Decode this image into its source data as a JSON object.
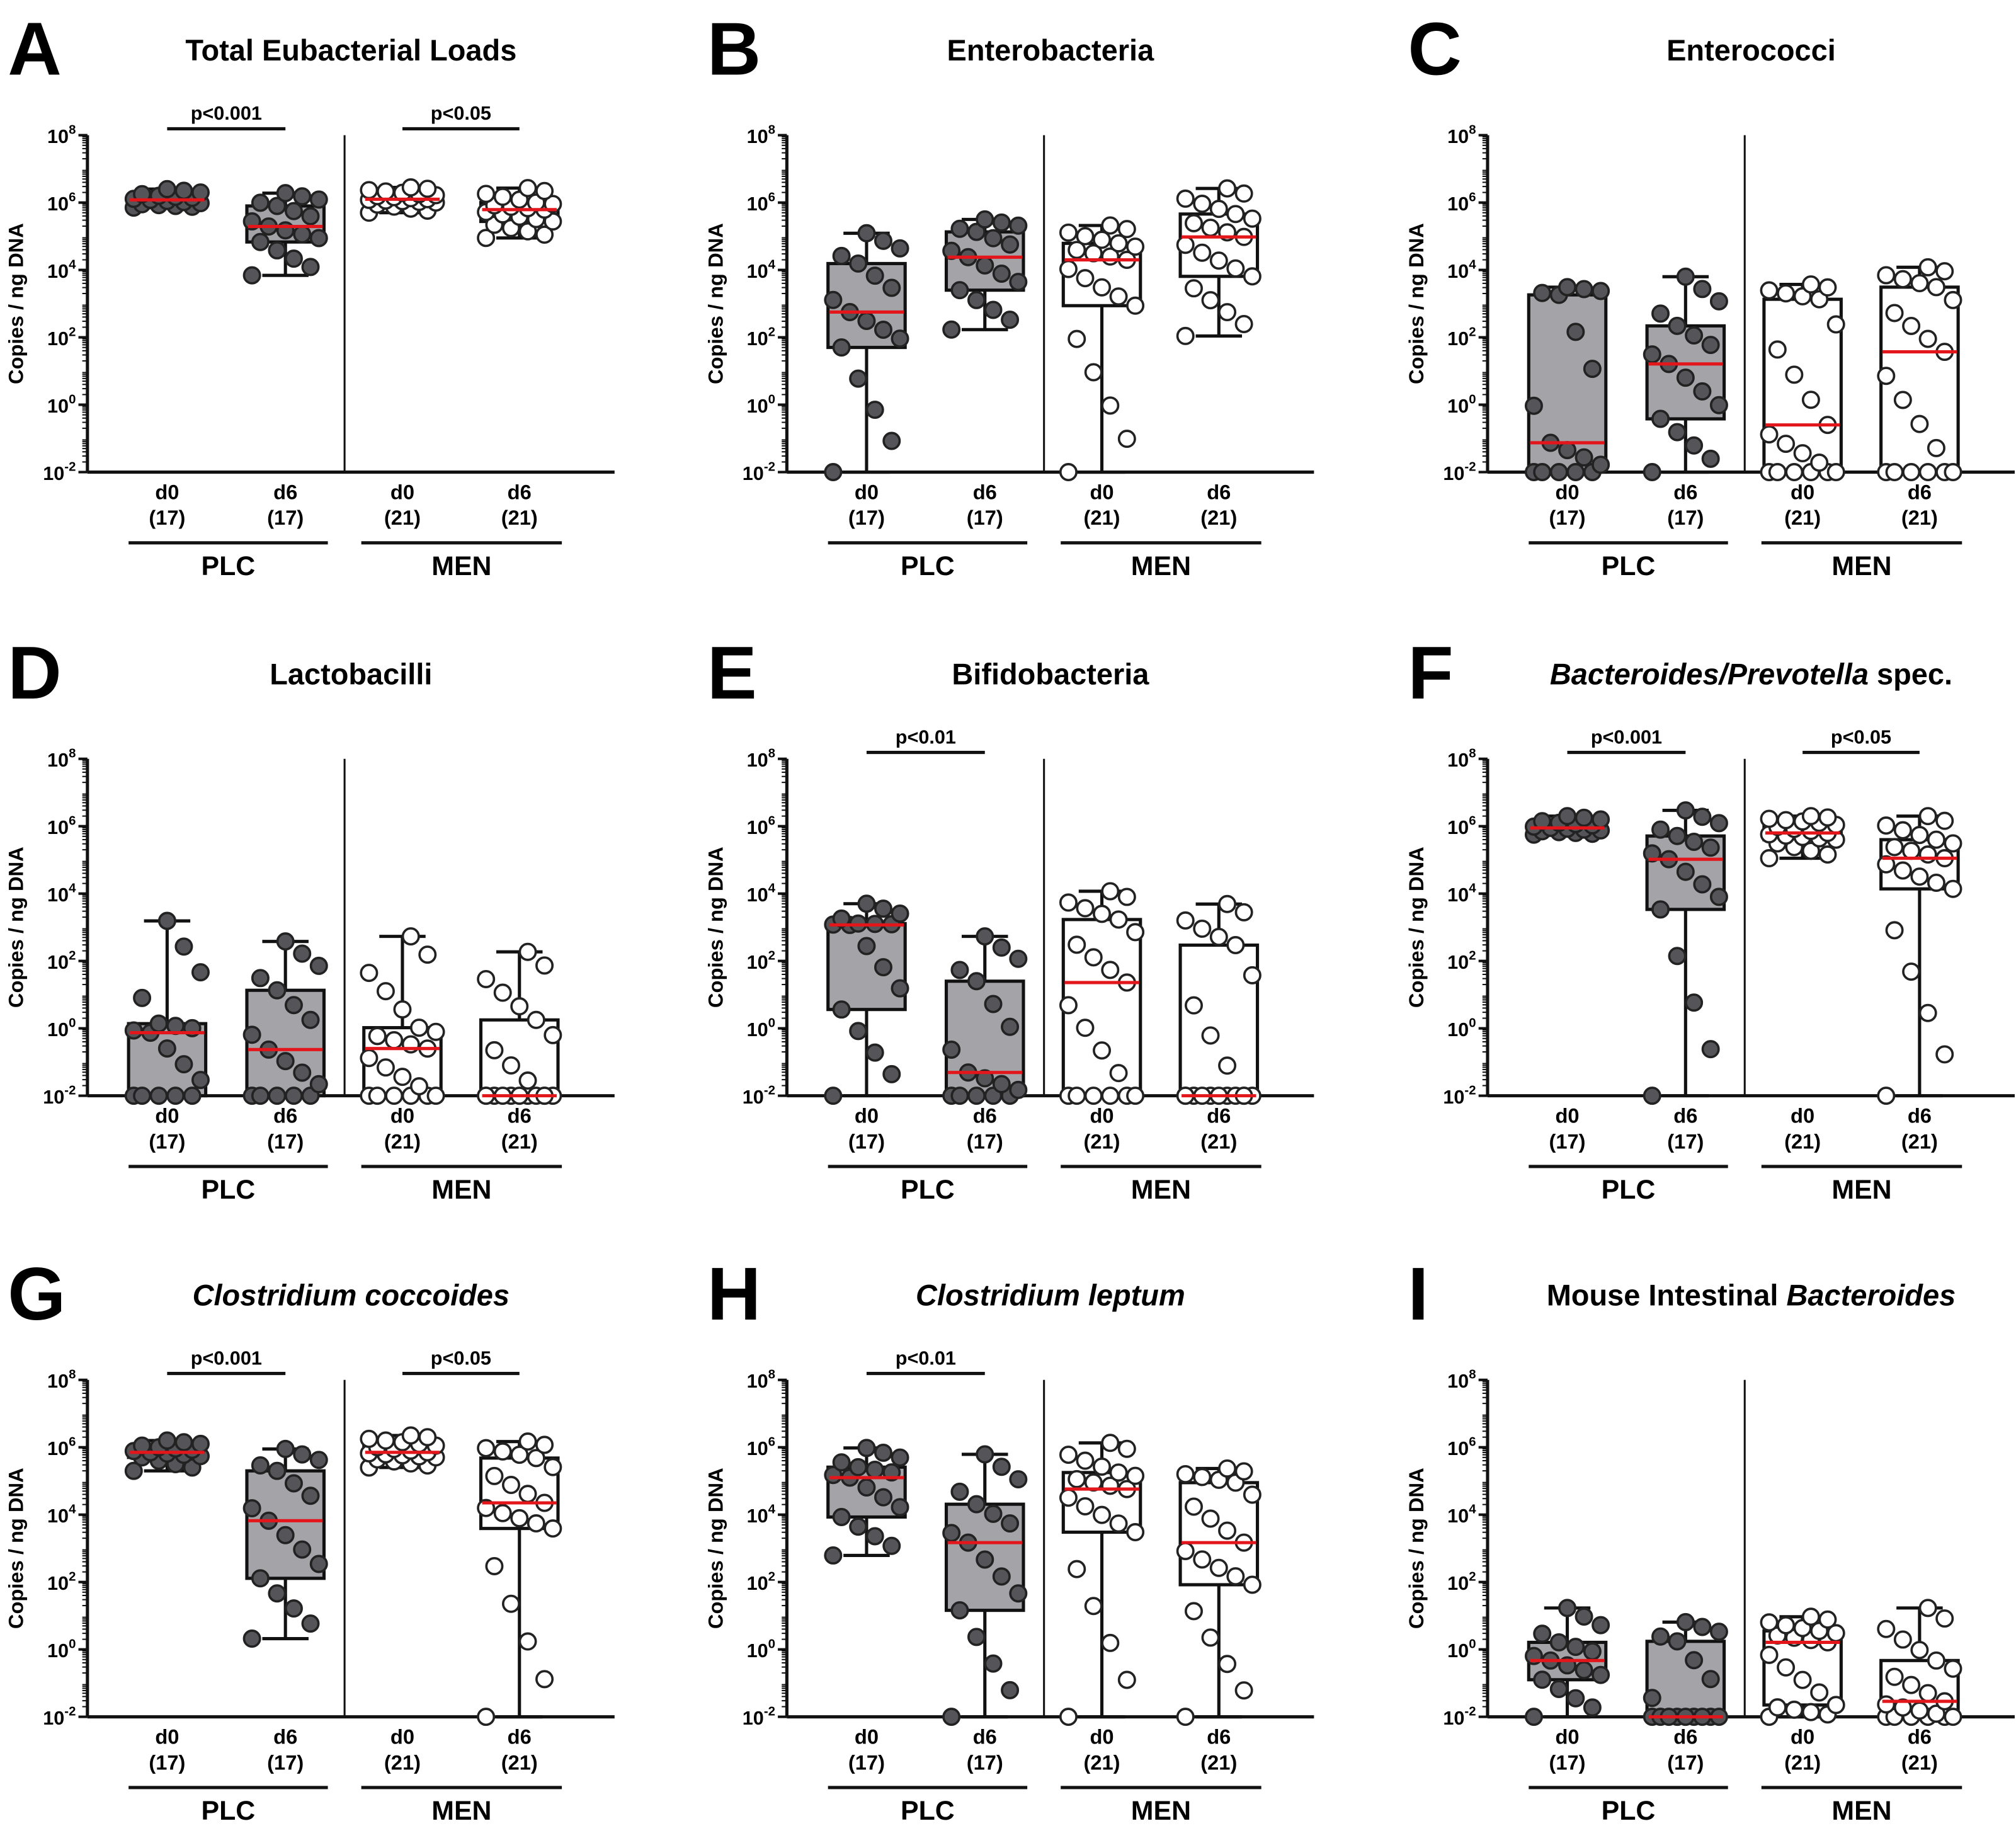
{
  "chart_data": [
    {
      "letter": "A",
      "type": "box",
      "title_parts": [
        {
          "text": "Total Eubacterial Loads",
          "italic": false
        }
      ],
      "ylabel": "Copies / ng DNA",
      "yscale": "log10",
      "ylim": [
        -2,
        8
      ],
      "yticks": [
        {
          "base": "10",
          "exp": "8"
        },
        {
          "base": "10",
          "exp": "6"
        },
        {
          "base": "10",
          "exp": "4"
        },
        {
          "base": "10",
          "exp": "2"
        },
        {
          "base": "10",
          "exp": "0"
        },
        {
          "base": "10",
          "exp": "-2"
        }
      ],
      "ytick_values": [
        8,
        6,
        4,
        2,
        0,
        -2
      ],
      "groups": [
        {
          "name": "PLC",
          "boxes": [
            {
              "label": "d0",
              "n_label": "(17)",
              "n": 17,
              "stats_log10": [
                5.85,
                5.95,
                6.08,
                6.2,
                6.4
              ]
            },
            {
              "label": "d6",
              "n_label": "(17)",
              "n": 17,
              "stats_log10": [
                3.84,
                4.83,
                5.29,
                5.9,
                6.28
              ]
            }
          ]
        },
        {
          "name": "MEN",
          "boxes": [
            {
              "label": "d0",
              "n_label": "(21)",
              "n": 21,
              "stats_log10": [
                5.7,
                6.0,
                6.1,
                6.25,
                6.45
              ]
            },
            {
              "label": "d6",
              "n_label": "(21)",
              "n": 21,
              "stats_log10": [
                4.95,
                5.44,
                5.79,
                6.0,
                6.43
              ]
            }
          ]
        }
      ],
      "significance": [
        {
          "group": "PLC",
          "label": "p<0.001"
        },
        {
          "group": "MEN",
          "label": "p<0.05"
        }
      ]
    },
    {
      "letter": "B",
      "type": "box",
      "title_parts": [
        {
          "text": "Enterobacteria",
          "italic": false
        }
      ],
      "ylabel": "Copies / ng DNA",
      "yscale": "log10",
      "ylim": [
        -2,
        8
      ],
      "yticks": [
        {
          "base": "10",
          "exp": "8"
        },
        {
          "base": "10",
          "exp": "6"
        },
        {
          "base": "10",
          "exp": "4"
        },
        {
          "base": "10",
          "exp": "2"
        },
        {
          "base": "10",
          "exp": "0"
        },
        {
          "base": "10",
          "exp": "-2"
        }
      ],
      "ytick_values": [
        8,
        6,
        4,
        2,
        0,
        -2
      ],
      "groups": [
        {
          "name": "PLC",
          "boxes": [
            {
              "label": "d0",
              "n_label": "(17)",
              "n": 17,
              "stats_log10": [
                -2,
                1.7,
                2.75,
                4.19,
                5.09
              ]
            },
            {
              "label": "d6",
              "n_label": "(17)",
              "n": 17,
              "stats_log10": [
                2.23,
                3.4,
                4.38,
                5.13,
                5.5
              ]
            }
          ]
        },
        {
          "name": "MEN",
          "boxes": [
            {
              "label": "d0",
              "n_label": "(21)",
              "n": 21,
              "stats_log10": [
                -2,
                2.94,
                4.3,
                4.79,
                5.32
              ]
            },
            {
              "label": "d6",
              "n_label": "(21)",
              "n": 21,
              "stats_log10": [
                2.04,
                3.81,
                4.98,
                5.66,
                6.42
              ]
            }
          ]
        }
      ],
      "significance": []
    },
    {
      "letter": "C",
      "type": "box",
      "title_parts": [
        {
          "text": "Enterococci",
          "italic": false
        }
      ],
      "ylabel": "Copies / ng DNA",
      "yscale": "log10",
      "ylim": [
        -2,
        8
      ],
      "yticks": [
        {
          "base": "10",
          "exp": "8"
        },
        {
          "base": "10",
          "exp": "6"
        },
        {
          "base": "10",
          "exp": "4"
        },
        {
          "base": "10",
          "exp": "2"
        },
        {
          "base": "10",
          "exp": "0"
        },
        {
          "base": "10",
          "exp": "-2"
        }
      ],
      "ytick_values": [
        8,
        6,
        4,
        2,
        0,
        -2
      ],
      "groups": [
        {
          "name": "PLC",
          "boxes": [
            {
              "label": "d0",
              "n_label": "(17)",
              "n": 17,
              "stats_log10": [
                -2,
                -2,
                -1.13,
                3.26,
                3.49
              ]
            },
            {
              "label": "d6",
              "n_label": "(17)",
              "n": 17,
              "stats_log10": [
                -2,
                -0.42,
                1.21,
                2.34,
                3.8
              ]
            }
          ]
        },
        {
          "name": "MEN",
          "boxes": [
            {
              "label": "d0",
              "n_label": "(21)",
              "n": 21,
              "stats_log10": [
                -2,
                -2,
                -0.6,
                3.13,
                3.57
              ]
            },
            {
              "label": "d6",
              "n_label": "(21)",
              "n": 21,
              "stats_log10": [
                -2,
                -2,
                1.57,
                3.49,
                4.08
              ]
            }
          ]
        }
      ],
      "significance": []
    },
    {
      "letter": "D",
      "type": "box",
      "title_parts": [
        {
          "text": "Lactobacilli",
          "italic": false
        }
      ],
      "ylabel": "Copies / ng DNA",
      "yscale": "log10",
      "ylim": [
        -2,
        8
      ],
      "yticks": [
        {
          "base": "10",
          "exp": "8"
        },
        {
          "base": "10",
          "exp": "6"
        },
        {
          "base": "10",
          "exp": "4"
        },
        {
          "base": "10",
          "exp": "2"
        },
        {
          "base": "10",
          "exp": "0"
        },
        {
          "base": "10",
          "exp": "-2"
        }
      ],
      "ytick_values": [
        8,
        6,
        4,
        2,
        0,
        -2
      ],
      "groups": [
        {
          "name": "PLC",
          "boxes": [
            {
              "label": "d0",
              "n_label": "(17)",
              "n": 17,
              "stats_log10": [
                -2,
                -2,
                -0.13,
                0.14,
                3.19
              ]
            },
            {
              "label": "d6",
              "n_label": "(17)",
              "n": 17,
              "stats_log10": [
                -2,
                -2,
                -0.63,
                1.13,
                2.58
              ]
            }
          ]
        },
        {
          "name": "MEN",
          "boxes": [
            {
              "label": "d0",
              "n_label": "(21)",
              "n": 21,
              "stats_log10": [
                -2,
                -2,
                -0.6,
                0.02,
                2.73
              ]
            },
            {
              "label": "d6",
              "n_label": "(21)",
              "n": 21,
              "stats_log10": [
                -2,
                -2,
                -2,
                0.25,
                2.27
              ]
            }
          ]
        }
      ],
      "significance": []
    },
    {
      "letter": "E",
      "type": "box",
      "title_parts": [
        {
          "text": "Bifidobacteria",
          "italic": false
        }
      ],
      "ylabel": "Copies / ng DNA",
      "yscale": "log10",
      "ylim": [
        -2,
        8
      ],
      "yticks": [
        {
          "base": "10",
          "exp": "8"
        },
        {
          "base": "10",
          "exp": "6"
        },
        {
          "base": "10",
          "exp": "4"
        },
        {
          "base": "10",
          "exp": "2"
        },
        {
          "base": "10",
          "exp": "0"
        },
        {
          "base": "10",
          "exp": "-2"
        }
      ],
      "ytick_values": [
        8,
        6,
        4,
        2,
        0,
        -2
      ],
      "groups": [
        {
          "name": "PLC",
          "boxes": [
            {
              "label": "d0",
              "n_label": "(17)",
              "n": 17,
              "stats_log10": [
                -2,
                0.56,
                3.07,
                3.11,
                3.7
              ]
            },
            {
              "label": "d6",
              "n_label": "(17)",
              "n": 17,
              "stats_log10": [
                -2,
                -2,
                -1.31,
                1.4,
                2.73
              ]
            }
          ]
        },
        {
          "name": "MEN",
          "boxes": [
            {
              "label": "d0",
              "n_label": "(21)",
              "n": 21,
              "stats_log10": [
                -2,
                -2,
                1.36,
                3.23,
                4.07
              ]
            },
            {
              "label": "d6",
              "n_label": "(21)",
              "n": 21,
              "stats_log10": [
                -2,
                -2,
                -2,
                2.47,
                3.69
              ]
            }
          ]
        }
      ],
      "significance": [
        {
          "group": "PLC",
          "label": "p<0.01"
        }
      ]
    },
    {
      "letter": "F",
      "type": "box",
      "title_parts": [
        {
          "text": "Bacteroides/Prevotella",
          "italic": true
        },
        {
          "text": " spec.",
          "italic": false
        }
      ],
      "ylabel": "Copies / ng DNA",
      "yscale": "log10",
      "ylim": [
        -2,
        8
      ],
      "yticks": [
        {
          "base": "10",
          "exp": "8"
        },
        {
          "base": "10",
          "exp": "6"
        },
        {
          "base": "10",
          "exp": "4"
        },
        {
          "base": "10",
          "exp": "2"
        },
        {
          "base": "10",
          "exp": "0"
        },
        {
          "base": "10",
          "exp": "-2"
        }
      ],
      "ytick_values": [
        8,
        6,
        4,
        2,
        0,
        -2
      ],
      "groups": [
        {
          "name": "PLC",
          "boxes": [
            {
              "label": "d0",
              "n_label": "(17)",
              "n": 17,
              "stats_log10": [
                5.75,
                5.85,
                5.95,
                6.1,
                6.3
              ]
            },
            {
              "label": "d6",
              "n_label": "(17)",
              "n": 17,
              "stats_log10": [
                -2,
                3.53,
                5.02,
                5.71,
                6.47
              ]
            }
          ]
        },
        {
          "name": "MEN",
          "boxes": [
            {
              "label": "d0",
              "n_label": "(21)",
              "n": 21,
              "stats_log10": [
                5.05,
                5.6,
                5.8,
                6.1,
                6.3
              ]
            },
            {
              "label": "d6",
              "n_label": "(21)",
              "n": 21,
              "stats_log10": [
                -2,
                4.14,
                5.05,
                5.6,
                6.3
              ]
            }
          ]
        }
      ],
      "significance": [
        {
          "group": "PLC",
          "label": "p<0.001"
        },
        {
          "group": "MEN",
          "label": "p<0.05"
        }
      ]
    },
    {
      "letter": "G",
      "type": "box",
      "title_parts": [
        {
          "text": "Clostridium coccoides",
          "italic": true
        }
      ],
      "ylabel": "Copies / ng DNA",
      "yscale": "log10",
      "ylim": [
        -2,
        8
      ],
      "yticks": [
        {
          "base": "10",
          "exp": "8"
        },
        {
          "base": "10",
          "exp": "6"
        },
        {
          "base": "10",
          "exp": "4"
        },
        {
          "base": "10",
          "exp": "2"
        },
        {
          "base": "10",
          "exp": "0"
        },
        {
          "base": "10",
          "exp": "-2"
        }
      ],
      "ytick_values": [
        8,
        6,
        4,
        2,
        0,
        -2
      ],
      "groups": [
        {
          "name": "PLC",
          "boxes": [
            {
              "label": "d0",
              "n_label": "(17)",
              "n": 17,
              "stats_log10": [
                5.3,
                5.7,
                5.85,
                6.0,
                6.2
              ]
            },
            {
              "label": "d6",
              "n_label": "(17)",
              "n": 17,
              "stats_log10": [
                0.32,
                2.11,
                3.82,
                5.3,
                5.95
              ]
            }
          ]
        },
        {
          "name": "MEN",
          "boxes": [
            {
              "label": "d0",
              "n_label": "(21)",
              "n": 21,
              "stats_log10": [
                5.4,
                5.7,
                5.85,
                6.1,
                6.35
              ]
            },
            {
              "label": "d6",
              "n_label": "(21)",
              "n": 21,
              "stats_log10": [
                -2,
                3.59,
                4.35,
                5.68,
                6.17
              ]
            }
          ]
        }
      ],
      "significance": [
        {
          "group": "PLC",
          "label": "p<0.001"
        },
        {
          "group": "MEN",
          "label": "p<0.05"
        }
      ]
    },
    {
      "letter": "H",
      "type": "box",
      "title_parts": [
        {
          "text": "Clostridium leptum",
          "italic": true
        }
      ],
      "ylabel": "Copies / ng DNA",
      "yscale": "log10",
      "ylim": [
        -2,
        8
      ],
      "yticks": [
        {
          "base": "10",
          "exp": "8"
        },
        {
          "base": "10",
          "exp": "6"
        },
        {
          "base": "10",
          "exp": "4"
        },
        {
          "base": "10",
          "exp": "2"
        },
        {
          "base": "10",
          "exp": "0"
        },
        {
          "base": "10",
          "exp": "-2"
        }
      ],
      "ytick_values": [
        8,
        6,
        4,
        2,
        0,
        -2
      ],
      "groups": [
        {
          "name": "PLC",
          "boxes": [
            {
              "label": "d0",
              "n_label": "(17)",
              "n": 17,
              "stats_log10": [
                2.79,
                3.93,
                5.1,
                5.41,
                5.98
              ]
            },
            {
              "label": "d6",
              "n_label": "(17)",
              "n": 17,
              "stats_log10": [
                -2,
                1.16,
                3.17,
                4.31,
                5.79
              ]
            }
          ]
        },
        {
          "name": "MEN",
          "boxes": [
            {
              "label": "d0",
              "n_label": "(21)",
              "n": 21,
              "stats_log10": [
                -2,
                3.48,
                4.76,
                5.25,
                6.13
              ]
            },
            {
              "label": "d6",
              "n_label": "(21)",
              "n": 21,
              "stats_log10": [
                -2,
                1.92,
                3.17,
                4.95,
                5.37
              ]
            }
          ]
        }
      ],
      "significance": [
        {
          "group": "PLC",
          "label": "p<0.01"
        }
      ]
    },
    {
      "letter": "I",
      "type": "box",
      "title_parts": [
        {
          "text": "Mouse Intestinal ",
          "italic": false
        },
        {
          "text": "Bacteroides",
          "italic": true
        }
      ],
      "ylabel": "Copies / ng DNA",
      "yscale": "log10",
      "ylim": [
        -2,
        8
      ],
      "yticks": [
        {
          "base": "10",
          "exp": "8"
        },
        {
          "base": "10",
          "exp": "6"
        },
        {
          "base": "10",
          "exp": "4"
        },
        {
          "base": "10",
          "exp": "2"
        },
        {
          "base": "10",
          "exp": "0"
        },
        {
          "base": "10",
          "exp": "-2"
        }
      ],
      "ytick_values": [
        8,
        6,
        4,
        2,
        0,
        -2
      ],
      "groups": [
        {
          "name": "PLC",
          "boxes": [
            {
              "label": "d0",
              "n_label": "(17)",
              "n": 17,
              "stats_log10": [
                -2,
                -0.9,
                -0.33,
                0.21,
                1.23
              ]
            },
            {
              "label": "d6",
              "n_label": "(17)",
              "n": 17,
              "stats_log10": [
                -2,
                -2,
                -2,
                0.24,
                0.81
              ]
            }
          ]
        },
        {
          "name": "MEN",
          "boxes": [
            {
              "label": "d0",
              "n_label": "(21)",
              "n": 21,
              "stats_log10": [
                -2,
                -1.65,
                0.21,
                0.55,
                0.97
              ]
            },
            {
              "label": "d6",
              "n_label": "(21)",
              "n": 21,
              "stats_log10": [
                -2,
                -2,
                -1.54,
                -0.33,
                1.23
              ]
            }
          ]
        }
      ],
      "significance": []
    }
  ],
  "colors": {
    "plc_box": "#a3a3a8",
    "plc_dot": "#555559",
    "men_box": "#ffffff",
    "men_dot": "#ffffff",
    "median": "#e3161c",
    "axis": "#111111"
  }
}
